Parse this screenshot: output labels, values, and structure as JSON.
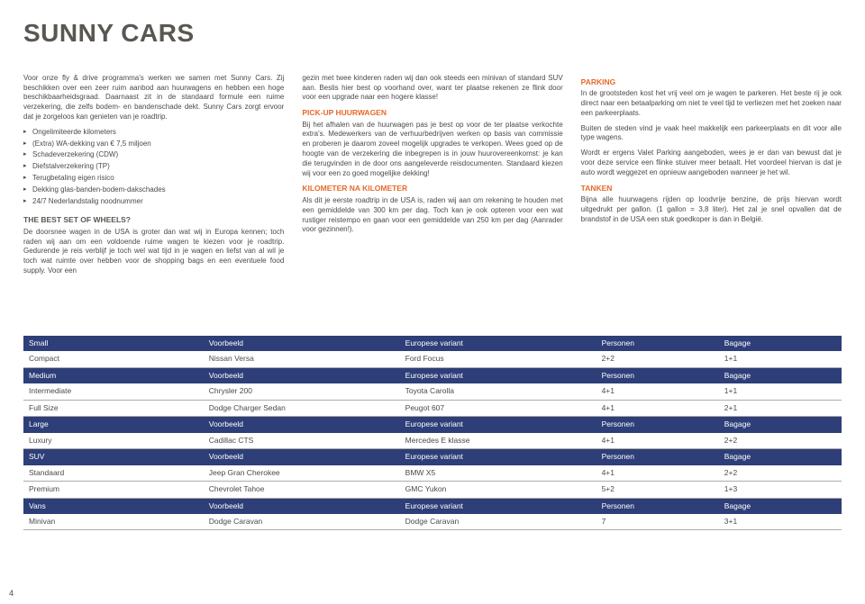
{
  "title": "SUNNY CARS",
  "col1": {
    "p1": "Voor onze fly & drive programma's werken we samen met Sunny Cars. Zij beschikken over een zeer ruim aanbod aan huurwagens en hebben een hoge beschikbaarheidsgraad. Daarnaast zit in de standaard formule een ruime verzekering, die zelfs bodem- en bandenschade dekt. Sunny Cars zorgt ervoor dat je zorgeloos kan genieten van je roadtrip.",
    "bullets": [
      "Ongelimiteerde kilometers",
      "(Extra) WA-dekking van € 7,5 miljoen",
      "Schadeverzekering (CDW)",
      "Diefstalverzekering (TP)",
      "Terugbetaling eigen risico",
      "Dekking glas-banden-bodem-dakschades",
      "24/7 Nederlandstalig noodnummer"
    ],
    "h2": "THE BEST SET OF WHEELS?",
    "p2": "De doorsnee wagen in de USA is groter dan wat wij in Europa kennen; toch raden wij aan om een voldoende ruime wagen te kiezen voor je roadtrip. Gedurende je reis verblijf je toch wel wat tijd in je wagen en liefst van al wil je toch wat ruimte over hebben voor de shopping bags en een eventuele food supply. Voor een"
  },
  "col2": {
    "p1": "gezin met twee kinderen raden wij dan ook steeds een minivan of standard SUV aan. Beslis hier best op voorhand over, want ter plaatse rekenen ze flink door voor een upgrade naar een hogere klasse!",
    "h1": "PICK-UP HUURWAGEN",
    "p2": "Bij het afhalen van de huurwagen pas je best op voor de ter plaatse verkochte extra's. Medewerkers van de verhuurbedrijven werken op basis van commissie en proberen je daarom zoveel mogelijk upgrades te verkopen. Wees goed op de hoogte van de verzekering die inbegrepen is in jouw huurovereenkomst: je kan die terugvinden in de door ons aangeleverde reisdocumenten. Standaard kiezen wij voor een zo goed mogelijke dekking!",
    "h2": "KILOMETER NA KILOMETER",
    "p3": "Als dit je eerste roadtrip in de USA is, raden wij aan om rekening te houden met een gemiddelde van 300 km per dag. Toch kan je ook opteren voor een wat rustiger reistempo en gaan voor een gemiddelde van 250 km per dag (Aanrader voor gezinnen!)."
  },
  "col3": {
    "h1": "PARKING",
    "p1": "In de grootsteden kost het vrij veel om je wagen te parkeren. Het beste rij je ook direct naar een betaalparking om niet te veel tijd te verliezen met het zoeken naar een parkeerplaats.",
    "p2": "Buiten de steden vind je vaak heel makkelijk een parkeerplaats en dit voor alle type wagens.",
    "p3": "Wordt er ergens Valet Parking aangeboden, wees je er dan van bewust dat je voor deze service een flinke stuiver meer betaalt. Het voordeel hiervan is dat je auto wordt weggezet en opnieuw aangeboden wanneer je het wil.",
    "h2": "TANKEN",
    "p4": "Bijna alle huurwagens rijden op loodvrije benzine, de prijs hiervan wordt uitgedrukt per gallon. (1 gallon = 3,8 liter). Het zal je snel opvallen dat de brandstof in de USA een stuk goedkoper is dan in België."
  },
  "table": {
    "headers": [
      "",
      "Voorbeeld",
      "Europese variant",
      "Personen",
      "Bagage"
    ],
    "groups": [
      {
        "cat": "Small",
        "rows": [
          [
            "Compact",
            "Nissan Versa",
            "Ford Focus",
            "2+2",
            "1+1"
          ]
        ]
      },
      {
        "cat": "Medium",
        "rows": [
          [
            "Intermediate",
            "Chrysler 200",
            "Toyota Carolla",
            "4+1",
            "1+1"
          ],
          [
            "Full Size",
            "Dodge Charger Sedan",
            "Peugot 607",
            "4+1",
            "2+1"
          ]
        ]
      },
      {
        "cat": "Large",
        "rows": [
          [
            "Luxury",
            "Cadillac CTS",
            "Mercedes E klasse",
            "4+1",
            "2+2"
          ]
        ]
      },
      {
        "cat": "SUV",
        "rows": [
          [
            "Standaard",
            "Jeep Gran Cherokee",
            "BMW X5",
            "4+1",
            "2+2"
          ],
          [
            "Premium",
            "Chevrolet Tahoe",
            "GMC Yukon",
            "5+2",
            "1+3"
          ]
        ]
      },
      {
        "cat": "Vans",
        "rows": [
          [
            "Minivan",
            "Dodge Caravan",
            "Dodge Caravan",
            "7",
            "3+1"
          ]
        ]
      }
    ]
  },
  "pageNumber": "4"
}
